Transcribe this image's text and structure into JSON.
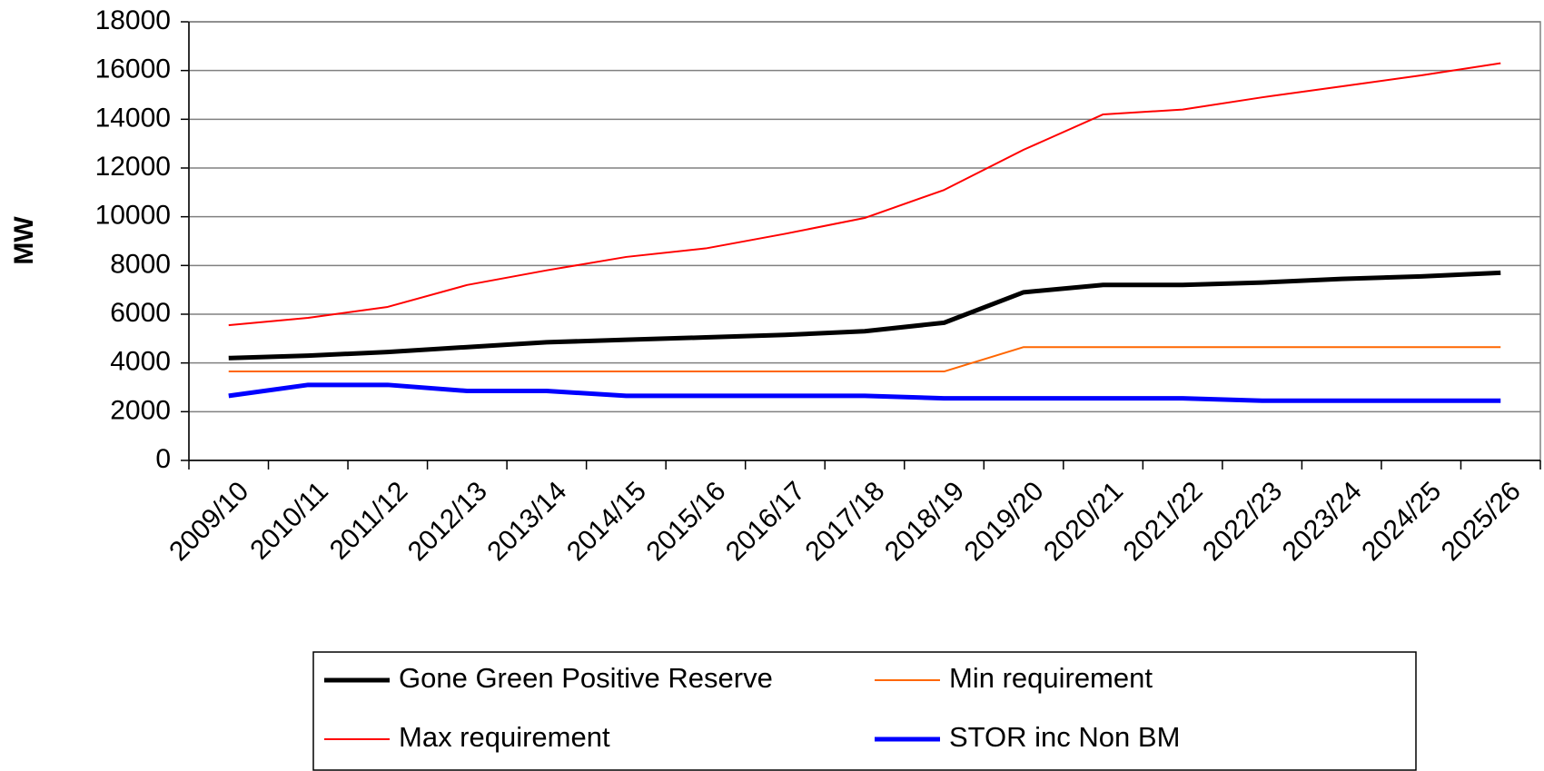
{
  "chart_data": {
    "type": "line",
    "y_label": "MW",
    "categories": [
      "2009/10",
      "2010/11",
      "2011/12",
      "2012/13",
      "2013/14",
      "2014/15",
      "2015/16",
      "2016/17",
      "2017/18",
      "2018/19",
      "2019/20",
      "2020/21",
      "2021/22",
      "2022/23",
      "2023/24",
      "2024/25",
      "2025/26"
    ],
    "series": [
      {
        "name": "Gone Green Positive Reserve",
        "color": "#000000",
        "line_width": 5,
        "values": [
          4200,
          4300,
          4450,
          4650,
          4850,
          4950,
          5050,
          5150,
          5300,
          5650,
          6900,
          7200,
          7200,
          7300,
          7450,
          7550,
          7700
        ]
      },
      {
        "name": "Min requirement",
        "color": "#ff6600",
        "line_width": 2,
        "values": [
          3650,
          3650,
          3650,
          3650,
          3650,
          3650,
          3650,
          3650,
          3650,
          3650,
          4650,
          4650,
          4650,
          4650,
          4650,
          4650,
          4650
        ]
      },
      {
        "name": "Max requirement",
        "color": "#ff0000",
        "line_width": 2,
        "values": [
          5550,
          5850,
          6300,
          7200,
          7800,
          8350,
          8700,
          9300,
          9950,
          11100,
          12750,
          14200,
          14400,
          14900,
          15350,
          15800,
          16300
        ]
      },
      {
        "name": "STOR inc Non BM",
        "color": "#0000ff",
        "line_width": 5,
        "values": [
          2650,
          3100,
          3100,
          2850,
          2850,
          2650,
          2650,
          2650,
          2650,
          2550,
          2550,
          2550,
          2550,
          2450,
          2450,
          2450,
          2450
        ]
      }
    ],
    "ylim": [
      0,
      18000
    ],
    "yticks": [
      0,
      2000,
      4000,
      6000,
      8000,
      10000,
      12000,
      14000,
      16000,
      18000
    ],
    "grid": true,
    "legend": "bottom"
  }
}
